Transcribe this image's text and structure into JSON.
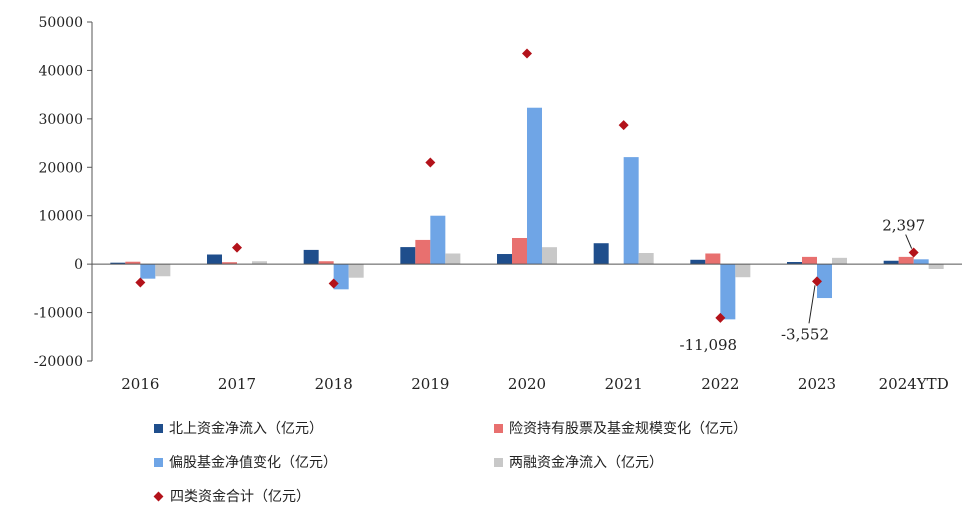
{
  "chart_data": {
    "type": "bar",
    "categories": [
      "2016",
      "2017",
      "2018",
      "2019",
      "2020",
      "2021",
      "2022",
      "2023",
      "2024YTD"
    ],
    "ylim": [
      -20000,
      50000
    ],
    "yticks": [
      "50000",
      "40000",
      "30000",
      "20000",
      "10000",
      "0",
      "-10000",
      "-20000"
    ],
    "series": [
      {
        "name": "北上资金净流入（亿元）",
        "color": "#1f4e8c",
        "kind": "bar",
        "values": [
          300,
          1990,
          2940,
          3520,
          2090,
          4320,
          900,
          440,
          700
        ]
      },
      {
        "name": "险资持有股票及基金规模变化（亿元）",
        "color": "#e8706f",
        "kind": "bar",
        "values": [
          500,
          400,
          600,
          5000,
          5400,
          0,
          2200,
          1500,
          1500
        ]
      },
      {
        "name": "偏股基金净值变化（亿元）",
        "color": "#6fa5e6",
        "kind": "bar",
        "values": [
          -3000,
          0,
          -5200,
          10000,
          32300,
          22100,
          -11400,
          -7000,
          1000
        ]
      },
      {
        "name": "两融资金净流入（亿元）",
        "color": "#c8c8c8",
        "kind": "bar",
        "values": [
          -2500,
          600,
          -2800,
          2200,
          3500,
          2300,
          -2700,
          1300,
          -1000
        ]
      },
      {
        "name": "四类资金合计（亿元）",
        "color": "#b3121a",
        "kind": "marker",
        "values": [
          -3800,
          3400,
          -4000,
          21000,
          43500,
          28700,
          -11098,
          -3552,
          2397
        ]
      }
    ],
    "data_labels": [
      {
        "series": 4,
        "index": 6,
        "text": "-11,098"
      },
      {
        "series": 4,
        "index": 7,
        "text": "-3,552"
      },
      {
        "series": 4,
        "index": 8,
        "text": "2,397"
      }
    ],
    "legend_position": "bottom"
  }
}
